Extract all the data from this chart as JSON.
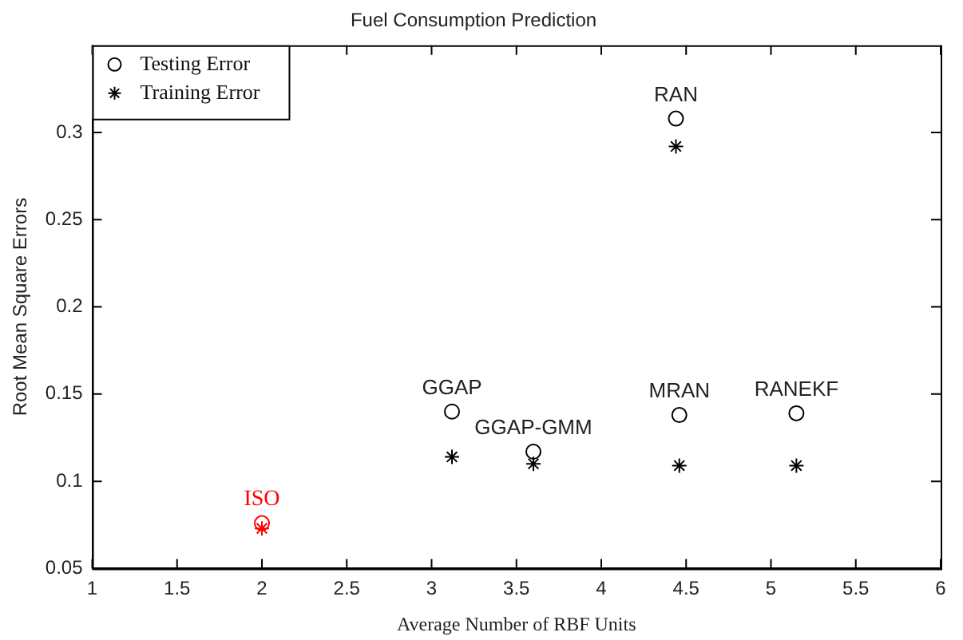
{
  "chart_data": {
    "type": "scatter",
    "title": "Fuel Consumption Prediction",
    "xlabel": "Average Number of RBF Units",
    "ylabel": "Root Mean Square Errors",
    "xlim": [
      1,
      6
    ],
    "xticks": [
      1,
      1.5,
      2,
      2.5,
      3,
      3.5,
      4,
      4.5,
      5,
      5.5,
      6
    ],
    "ylim": [
      0.05,
      0.35
    ],
    "yticks": [
      0.05,
      0.1,
      0.15,
      0.2,
      0.25,
      0.3
    ],
    "grid": false,
    "legend": "top left",
    "series": [
      {
        "name": "Testing Error",
        "marker": "circle",
        "x": [
          2,
          3.12,
          3.6,
          4.46,
          5.15,
          4.44
        ],
        "values": [
          0.076,
          0.14,
          0.117,
          0.138,
          0.139,
          0.308
        ],
        "colors": [
          "#ff0000",
          "#000000",
          "#000000",
          "#000000",
          "#000000",
          "#000000"
        ]
      },
      {
        "name": "Training Error",
        "marker": "cross",
        "x": [
          2,
          3.12,
          3.6,
          4.46,
          5.15,
          4.44
        ],
        "values": [
          0.073,
          0.114,
          0.11,
          0.109,
          0.109,
          0.292
        ],
        "colors": [
          "#ff0000",
          "#000000",
          "#000000",
          "#000000",
          "#000000",
          "#000000"
        ]
      }
    ],
    "annotations": [
      {
        "text": "ISO",
        "x": 2,
        "y": 0.076
      },
      {
        "text": "GGAP",
        "x": 3.12,
        "y": 0.14
      },
      {
        "text": "GGAP-GMM",
        "x": 3.6,
        "y": 0.117
      },
      {
        "text": "MRAN",
        "x": 4.46,
        "y": 0.138
      },
      {
        "text": "RANEKF",
        "x": 5.15,
        "y": 0.139
      },
      {
        "text": "RAN",
        "x": 4.44,
        "y": 0.308
      }
    ]
  }
}
